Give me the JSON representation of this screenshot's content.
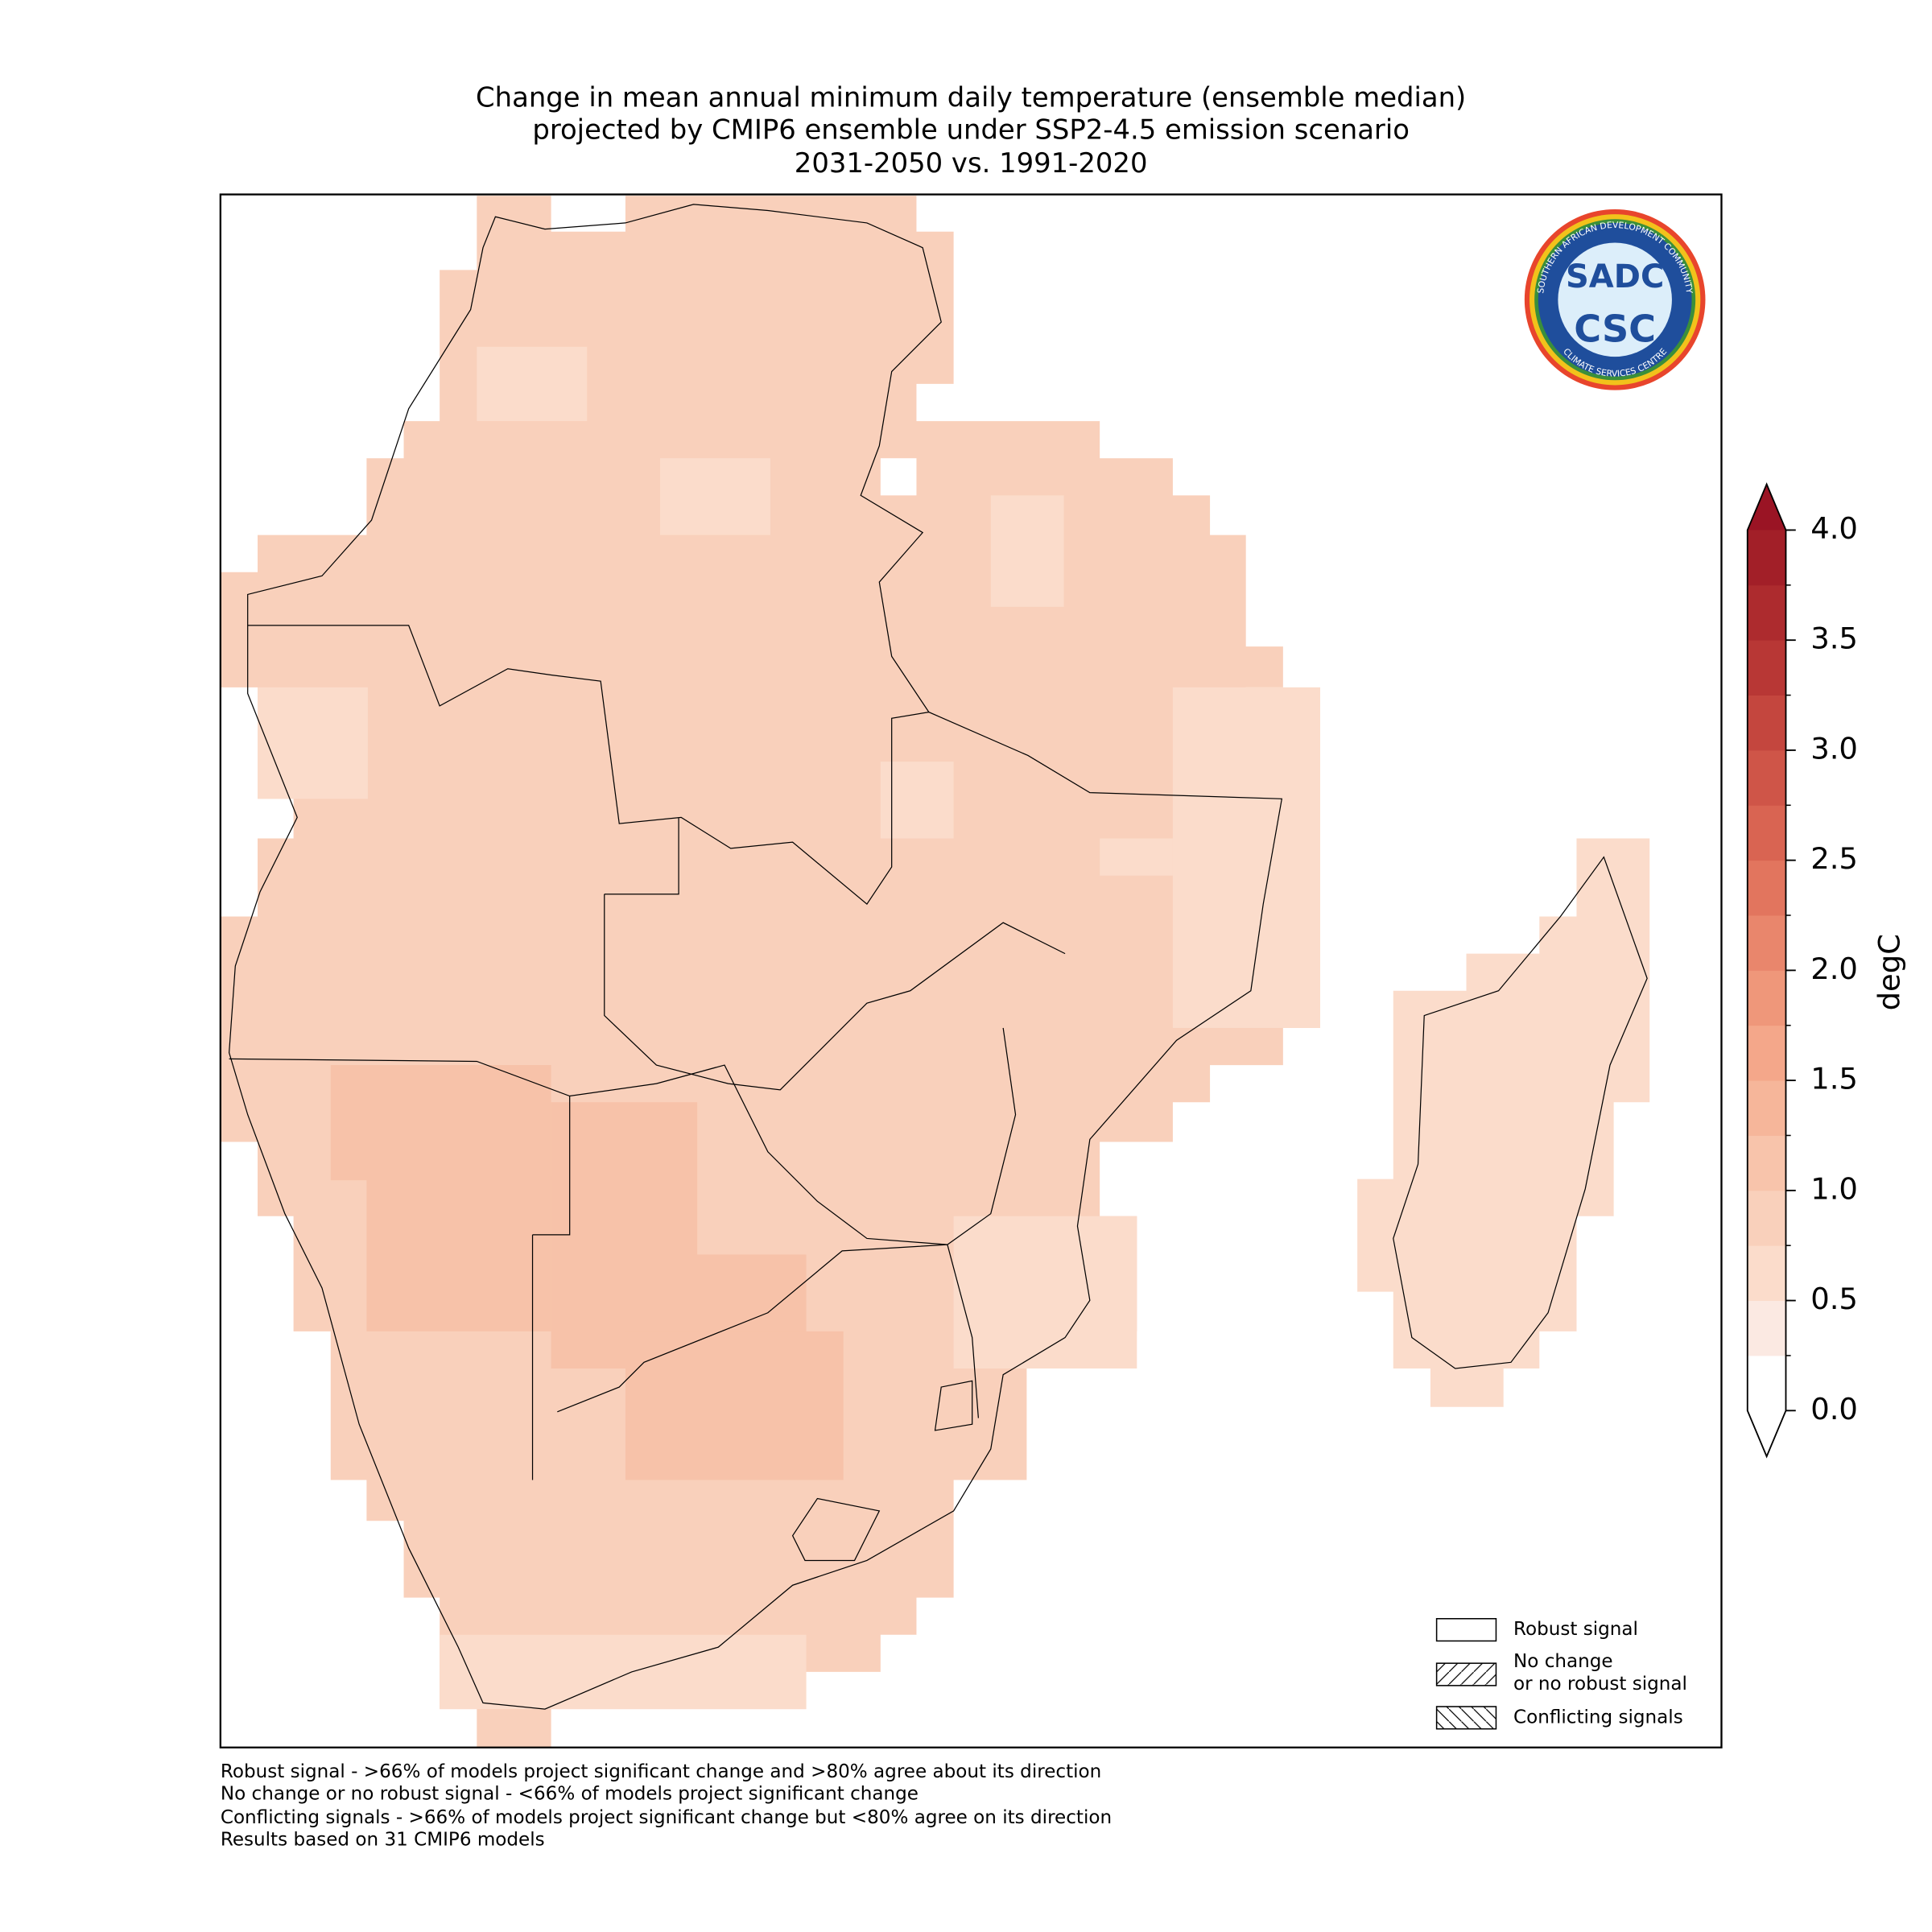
{
  "title": [
    "Change in mean annual minimum daily temperature (ensemble median)",
    "projected by CMIP6 ensemble under SSP2-4.5 emission scenario",
    "2031-2050 vs. 1991-2020"
  ],
  "colorbar": {
    "label": "degC",
    "ticks": [
      "0.0",
      "0.5",
      "1.0",
      "1.5",
      "2.0",
      "2.5",
      "3.0",
      "3.5",
      "4.0"
    ],
    "colors": [
      "#ffffff",
      "#fbe9e2",
      "#fbdccb",
      "#f9d0bb",
      "#f8c4ab",
      "#f6b69a",
      "#f4a78a",
      "#ef977a",
      "#e9866c",
      "#e2755e",
      "#d96452",
      "#cf5548",
      "#c4463e",
      "#b83735",
      "#ad2b2e",
      "#a21f28"
    ],
    "over_color": "#9a1424"
  },
  "legend": {
    "robust": "Robust signal",
    "no_change": [
      "No change",
      "or no robust signal"
    ],
    "conflicting": "Conflicting signals"
  },
  "footnotes": [
    "Robust signal - >66% of models project significant change and >80% agree about its direction",
    "No change or no robust signal - <66% of models project significant change",
    "Conflicting signals - >66% of models project significant change but <80% agree on its direction",
    "Results based on 31 CMIP6 models"
  ],
  "logo": {
    "abbr": "SADC",
    "centre": "CSC",
    "ring_top": "SOUTHERN AFRICAN DEVELOPMENT COMMUNITY",
    "ring_bottom": "CLIMATE SERVICES CENTRE"
  }
}
